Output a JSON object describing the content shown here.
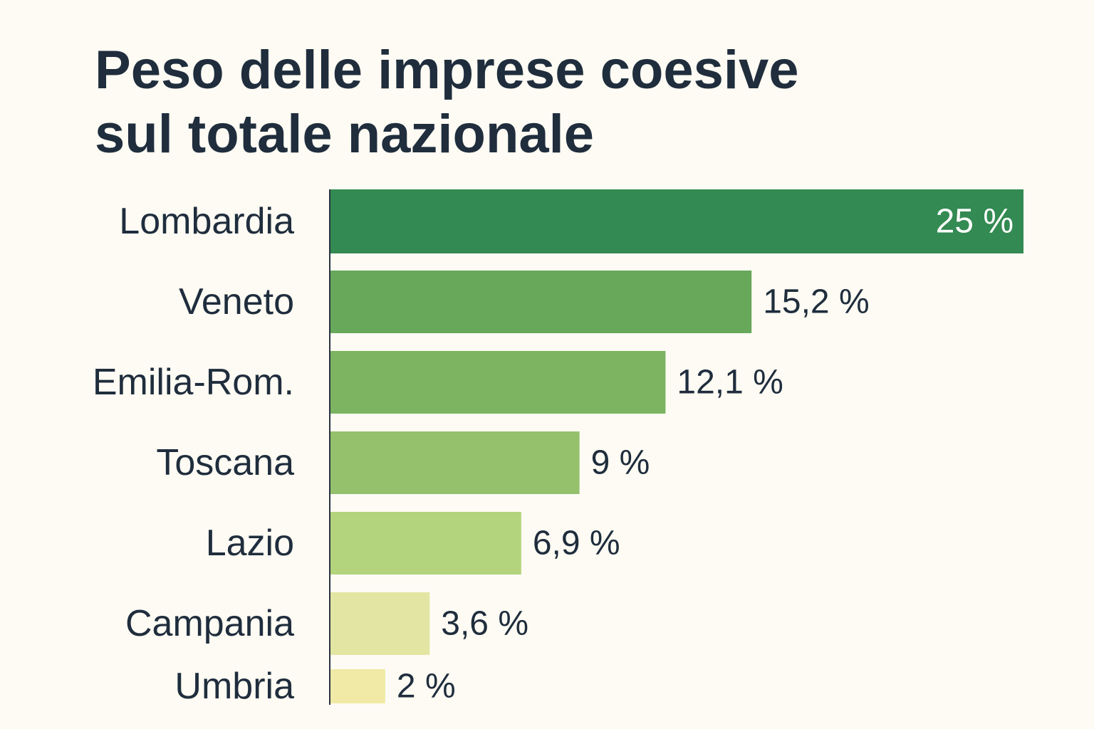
{
  "chart_data": {
    "type": "bar",
    "orientation": "horizontal",
    "title_lines": [
      "Peso delle imprese coesive",
      "sul totale nazionale"
    ],
    "categories": [
      "Lombardia",
      "Veneto",
      "Emilia-Rom.",
      "Toscana",
      "Lazio",
      "Campania",
      "Umbria"
    ],
    "values": [
      25,
      15.2,
      12.1,
      9,
      6.9,
      3.6,
      2
    ],
    "value_labels": [
      "25 %",
      "15,2 %",
      "12,1 %",
      "9 %",
      "6,9 %",
      "3,6 %",
      "2 %"
    ],
    "colors": [
      "#338a52",
      "#67a85a",
      "#7cb462",
      "#95c06c",
      "#b3d37c",
      "#e2e6a2",
      "#f1eaa6"
    ],
    "xlim": [
      0,
      25
    ],
    "grid": false,
    "legend": "none"
  }
}
